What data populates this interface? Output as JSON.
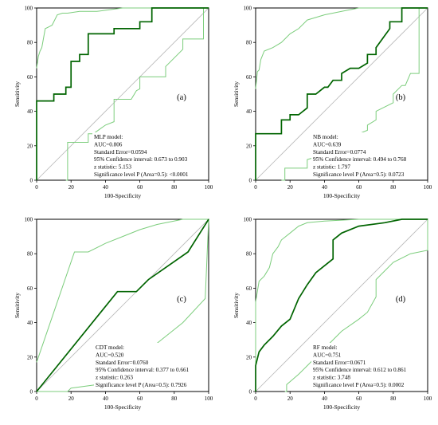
{
  "chart_data": [
    {
      "type": "line",
      "panel_label": "(a)",
      "xlabel": "100-Specificity",
      "ylabel": "Sensitivity",
      "xlim": [
        0,
        100
      ],
      "ylim": [
        0,
        100
      ],
      "x_ticks": [
        "0",
        "20",
        "40",
        "60",
        "80",
        "100"
      ],
      "y_ticks": [
        "0",
        "20",
        "40",
        "60",
        "80",
        "100"
      ],
      "diagonal_reference": true,
      "series": [
        {
          "role": "roc",
          "color": "#006400",
          "x": [
            0,
            0,
            2,
            10,
            10,
            17,
            17,
            20,
            20,
            25,
            25,
            30,
            30,
            35,
            35,
            45,
            45,
            60,
            60,
            67,
            67,
            80,
            80,
            100
          ],
          "y": [
            0,
            46,
            46,
            46,
            50,
            50,
            54,
            54,
            69,
            69,
            73,
            73,
            85,
            85,
            85,
            85,
            88,
            88,
            92,
            92,
            100,
            100,
            100,
            100
          ]
        },
        {
          "role": "ci_upper",
          "color": "#7ccd7c",
          "x": [
            0,
            1,
            2,
            3,
            5,
            7,
            9,
            12,
            15,
            18,
            25,
            35,
            50,
            60,
            75,
            100
          ],
          "y": [
            65,
            72,
            75,
            77,
            88,
            89,
            90,
            96,
            97,
            97,
            98,
            98,
            100,
            100,
            100,
            100
          ]
        },
        {
          "role": "ci_lower",
          "color": "#7ccd7c",
          "x": [
            17,
            18,
            18,
            30,
            30,
            33,
            40,
            45,
            45,
            55,
            58,
            60,
            60,
            75,
            75,
            85,
            85,
            97,
            97,
            100
          ],
          "y": [
            0,
            0,
            22,
            22,
            27,
            27,
            32,
            34,
            47,
            47,
            52,
            53,
            60,
            60,
            66,
            76,
            82,
            82,
            100,
            100
          ]
        }
      ],
      "stats_lines": [
        "MLP model:",
        "AUC=0.806",
        "Standard Error=0.0594",
        "95% Confidence interval: 0.673 to 0.903",
        "z statistic: 5.153",
        "Significance level P (Area=0.5): <0.0001"
      ]
    },
    {
      "type": "line",
      "panel_label": "(b)",
      "xlabel": "100-Specificity",
      "ylabel": "Sensitivity",
      "xlim": [
        0,
        100
      ],
      "ylim": [
        0,
        100
      ],
      "x_ticks": [
        "0",
        "20",
        "40",
        "60",
        "80",
        "100"
      ],
      "y_ticks": [
        "0",
        "20",
        "40",
        "60",
        "80",
        "100"
      ],
      "diagonal_reference": true,
      "series": [
        {
          "role": "roc",
          "color": "#006400",
          "x": [
            0,
            0,
            15,
            15,
            20,
            20,
            25,
            30,
            30,
            35,
            40,
            42,
            45,
            50,
            50,
            55,
            60,
            65,
            65,
            70,
            70,
            78,
            78,
            85,
            85,
            100
          ],
          "y": [
            0,
            27,
            27,
            35,
            35,
            38,
            38,
            42,
            50,
            50,
            54,
            54,
            58,
            58,
            62,
            65,
            65,
            68,
            73,
            73,
            77,
            88,
            92,
            92,
            100,
            100
          ]
        },
        {
          "role": "ci_upper",
          "color": "#7ccd7c",
          "x": [
            0,
            1,
            2,
            3,
            5,
            10,
            15,
            20,
            25,
            30,
            40,
            50,
            60,
            80,
            100
          ],
          "y": [
            53,
            63,
            64,
            70,
            75,
            77,
            80,
            85,
            88,
            93,
            96,
            98,
            100,
            100,
            100
          ]
        },
        {
          "role": "ci_lower",
          "color": "#7ccd7c",
          "x": [
            15,
            17,
            17,
            30,
            30,
            40,
            45,
            50,
            60,
            65,
            65,
            70,
            70,
            80,
            80,
            85,
            87,
            90,
            95,
            95,
            100
          ],
          "y": [
            0,
            0,
            7,
            7,
            12,
            15,
            17,
            21,
            27,
            29,
            32,
            35,
            40,
            45,
            50,
            55,
            55,
            62,
            62,
            100,
            100
          ]
        }
      ],
      "stats_lines": [
        "NB model:",
        "AUC=0.639",
        "Standard Error=0.0774",
        "95% Confidence interval: 0.494 to 0.768",
        "z statistic: 1.797",
        "Significance level P (Area=0.5): 0.0723"
      ]
    },
    {
      "type": "line",
      "panel_label": "(c)",
      "xlabel": "100-Specificity",
      "ylabel": "Sensitivity",
      "xlim": [
        0,
        100
      ],
      "ylim": [
        0,
        100
      ],
      "x_ticks": [
        "0",
        "20",
        "40",
        "60",
        "80",
        "100"
      ],
      "y_ticks": [
        "0",
        "20",
        "40",
        "60",
        "80",
        "100"
      ],
      "diagonal_reference": true,
      "series": [
        {
          "role": "roc",
          "color": "#006400",
          "x": [
            0,
            47,
            58,
            65,
            88,
            100
          ],
          "y": [
            0,
            58,
            58,
            65,
            81,
            100
          ]
        },
        {
          "role": "ci_upper",
          "color": "#7ccd7c",
          "x": [
            0,
            22,
            30,
            40,
            50,
            60,
            70,
            85,
            100
          ],
          "y": [
            17,
            81,
            81,
            86,
            90,
            94,
            97,
            100,
            100
          ]
        },
        {
          "role": "ci_lower",
          "color": "#7ccd7c",
          "x": [
            0,
            18,
            20,
            35,
            50,
            70,
            85,
            98,
            100
          ],
          "y": [
            0,
            0,
            2,
            4,
            12,
            28,
            40,
            54,
            100
          ]
        }
      ],
      "stats_lines": [
        "CDT model:",
        "AUC=0.520",
        "Standard Error=0.0760",
        "95% Confidence interval: 0.377 to 0.661",
        "z statistic: 0.263",
        "Significance level P (Area=0.5): 0.7926"
      ]
    },
    {
      "type": "line",
      "panel_label": "(d)",
      "xlabel": "100-Specificity",
      "ylabel": "Sensitivity",
      "xlim": [
        0,
        100
      ],
      "ylim": [
        0,
        100
      ],
      "x_ticks": [
        "0",
        "20",
        "40",
        "60",
        "80",
        "100"
      ],
      "y_ticks": [
        "0",
        "20",
        "40",
        "60",
        "80",
        "100"
      ],
      "diagonal_reference": true,
      "series": [
        {
          "role": "roc",
          "color": "#006400",
          "x": [
            0,
            0,
            2,
            5,
            10,
            15,
            20,
            25,
            30,
            35,
            40,
            45,
            45,
            50,
            60,
            75,
            85,
            100
          ],
          "y": [
            0,
            15,
            23,
            27,
            32,
            38,
            42,
            54,
            62,
            69,
            73,
            77,
            88,
            92,
            96,
            98,
            100,
            100
          ]
        },
        {
          "role": "ci_upper",
          "color": "#7ccd7c",
          "x": [
            0,
            0,
            2,
            5,
            8,
            10,
            13,
            15,
            20,
            25,
            30,
            40,
            60,
            80,
            100
          ],
          "y": [
            0,
            52,
            64,
            67,
            72,
            80,
            84,
            88,
            92,
            96,
            98,
            99,
            100,
            100,
            100
          ]
        },
        {
          "role": "ci_lower",
          "color": "#7ccd7c",
          "x": [
            17,
            18,
            18,
            25,
            30,
            35,
            40,
            50,
            60,
            65,
            70,
            70,
            80,
            90,
            100,
            100
          ],
          "y": [
            0,
            0,
            4,
            10,
            15,
            20,
            25,
            35,
            42,
            46,
            55,
            65,
            75,
            80,
            82,
            100
          ]
        }
      ],
      "stats_lines": [
        "RF model:",
        "AUC=0.751",
        "Standard Error=0.0671",
        "95% Confidence interval: 0.612 to 0.861",
        "z statistic: 3.748",
        "Significance level P (Area=0.5): 0.0002"
      ]
    }
  ]
}
